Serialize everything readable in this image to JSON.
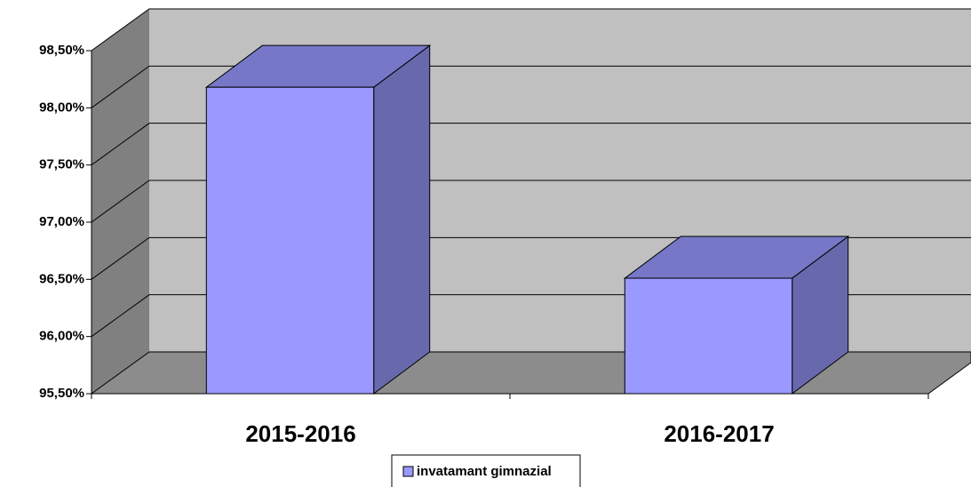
{
  "chart_data": {
    "type": "bar3d",
    "categories": [
      "2015-2016",
      "2016-2017"
    ],
    "series": [
      {
        "name": "invatamant gimnazial",
        "color": "#9999ff",
        "values": [
          98.18,
          96.51
        ]
      }
    ],
    "ylim": [
      95.5,
      98.5
    ],
    "yticks": [
      {
        "value": 95.5,
        "label": "95,50%"
      },
      {
        "value": 96,
        "label": "96,00%"
      },
      {
        "value": 96.5,
        "label": "96,50%"
      },
      {
        "value": 97,
        "label": "97,00%"
      },
      {
        "value": 97.5,
        "label": "97,50%"
      },
      {
        "value": 98,
        "label": "98,00%"
      },
      {
        "value": 98.5,
        "label": "98,50%"
      }
    ],
    "grid": true,
    "legend": "bottom"
  }
}
